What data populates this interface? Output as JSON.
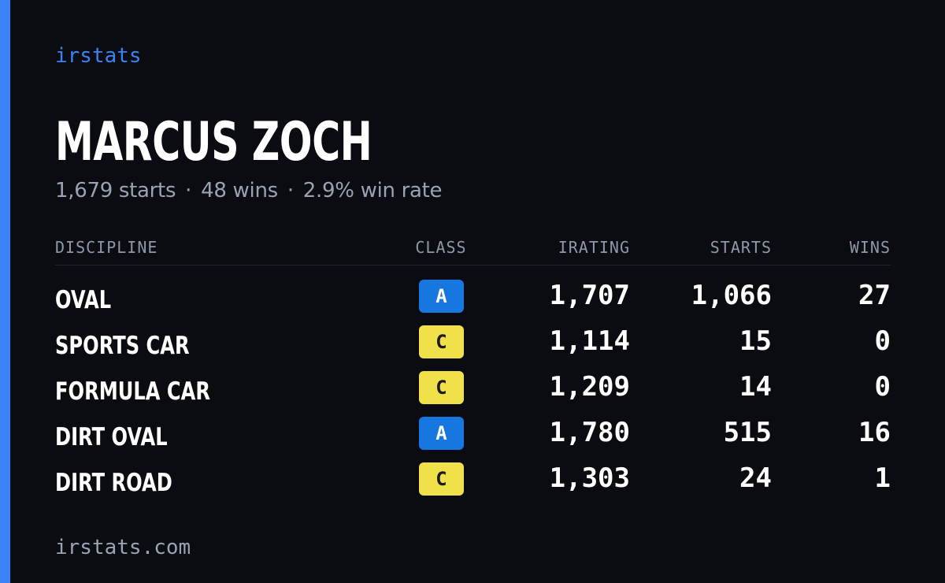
{
  "brand": "irstats",
  "profile": {
    "name": "MARCUS ZOCH",
    "stats": {
      "starts": "1,679 starts",
      "wins": "48 wins",
      "win_rate": "2.9% win rate",
      "separator": "·"
    }
  },
  "table": {
    "headers": {
      "discipline": "DISCIPLINE",
      "class": "CLASS",
      "irating": "IRATING",
      "starts": "STARTS",
      "wins": "WINS"
    },
    "rows": [
      {
        "discipline": "OVAL",
        "class": "A",
        "irating": "1,707",
        "starts": "1,066",
        "wins": "27"
      },
      {
        "discipline": "SPORTS CAR",
        "class": "C",
        "irating": "1,114",
        "starts": "15",
        "wins": "0"
      },
      {
        "discipline": "FORMULA CAR",
        "class": "C",
        "irating": "1,209",
        "starts": "14",
        "wins": "0"
      },
      {
        "discipline": "DIRT OVAL",
        "class": "A",
        "irating": "1,780",
        "starts": "515",
        "wins": "16"
      },
      {
        "discipline": "DIRT ROAD",
        "class": "C",
        "irating": "1,303",
        "starts": "24",
        "wins": "1"
      }
    ]
  },
  "footer": "irstats.com",
  "colors": {
    "accent": "#3b82f6",
    "class_a": "#1677e0",
    "class_c": "#f0e04a",
    "background": "#0a0c12"
  }
}
